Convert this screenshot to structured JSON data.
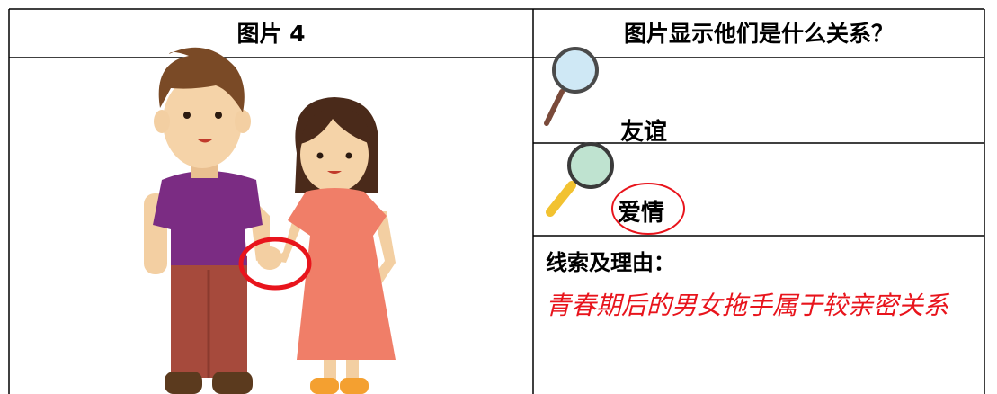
{
  "table": {
    "header": [
      "图片 4",
      "图片显示他们是什么关系？"
    ],
    "options": [
      "友谊",
      "爱情"
    ],
    "clue_label": "线索及理由：",
    "answer": "青春期后的男女拖手属于较亲密关系"
  }
}
